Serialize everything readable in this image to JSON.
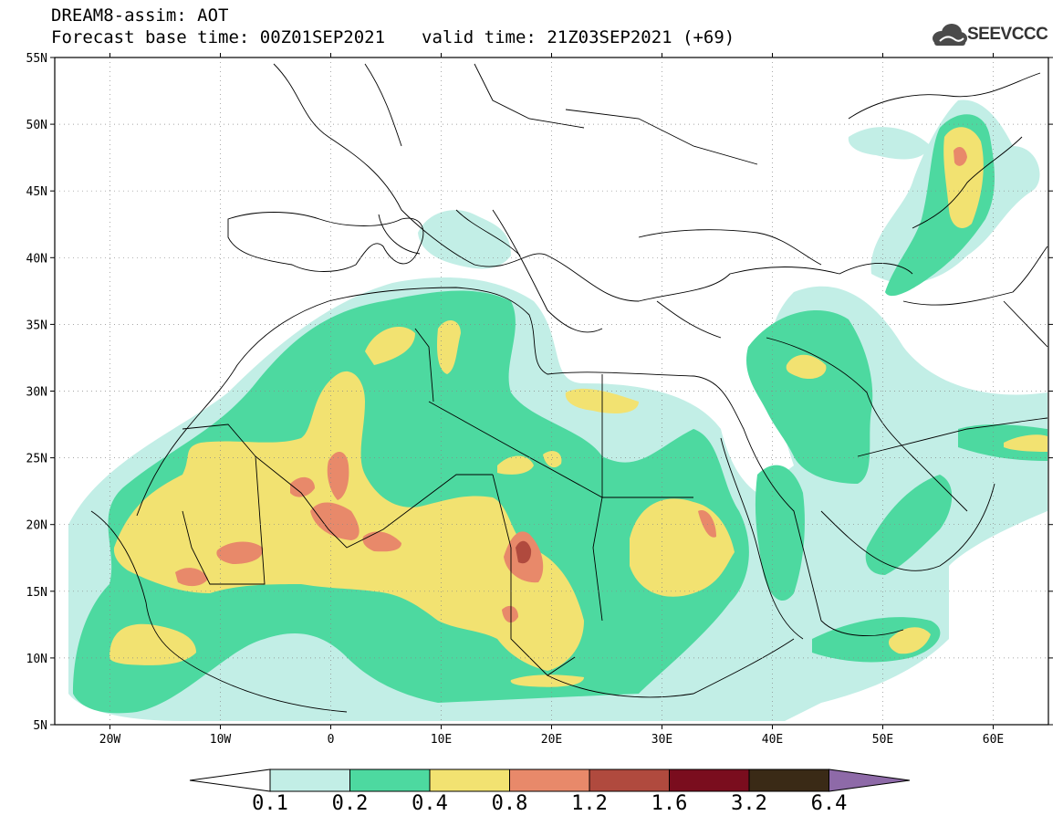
{
  "header": {
    "line1": "DREAM8-assim: AOT",
    "base_label": "Forecast base time: 00Z01SEP2021",
    "valid_label": "valid time: 21Z03SEP2021 (+69)"
  },
  "logo": {
    "text": "SEEVCCC",
    "icon": "cloud-icon"
  },
  "map": {
    "lon_range": [
      -25,
      65
    ],
    "lat_range": [
      5,
      55
    ],
    "lat_ticks": [
      {
        "value": 55,
        "label": "55N"
      },
      {
        "value": 50,
        "label": "50N"
      },
      {
        "value": 45,
        "label": "45N"
      },
      {
        "value": 40,
        "label": "40N"
      },
      {
        "value": 35,
        "label": "35N"
      },
      {
        "value": 30,
        "label": "30N"
      },
      {
        "value": 25,
        "label": "25N"
      },
      {
        "value": 20,
        "label": "20N"
      },
      {
        "value": 15,
        "label": "15N"
      },
      {
        "value": 10,
        "label": "10N"
      },
      {
        "value": 5,
        "label": "5N"
      }
    ],
    "lon_ticks": [
      {
        "value": -20,
        "label": "20W"
      },
      {
        "value": -10,
        "label": "10W"
      },
      {
        "value": 0,
        "label": "0"
      },
      {
        "value": 10,
        "label": "10E"
      },
      {
        "value": 20,
        "label": "20E"
      },
      {
        "value": 30,
        "label": "30E"
      },
      {
        "value": 40,
        "label": "40E"
      },
      {
        "value": 50,
        "label": "50E"
      },
      {
        "value": 60,
        "label": "60E"
      }
    ],
    "grid": "dotted"
  },
  "colorbar": {
    "labels": [
      "0.1",
      "0.2",
      "0.4",
      "0.8",
      "1.2",
      "1.6",
      "3.2",
      "6.4"
    ],
    "colors": [
      "#c2eee6",
      "#4dd9a0",
      "#f2e271",
      "#e8896a",
      "#b04a3e",
      "#7a0d1e",
      "#3a2a16",
      "#8e6aa8"
    ],
    "under_color": "#ffffff",
    "over_color": "#8e6aa8"
  }
}
